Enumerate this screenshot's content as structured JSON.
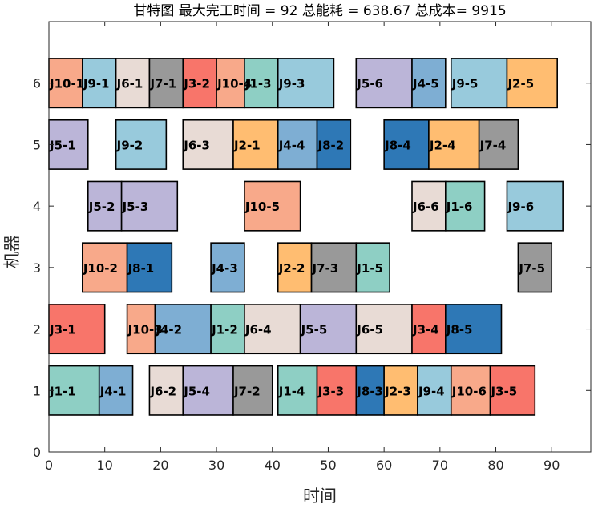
{
  "chart_data": {
    "type": "gantt",
    "title": "甘特图 最大完工时间 = 92 总能耗 = 638.67 总成本= 9915",
    "xlabel": "时间",
    "ylabel": "机器",
    "xlim": [
      0,
      97
    ],
    "ylim": [
      0,
      7
    ],
    "xticks": [
      0,
      10,
      20,
      30,
      40,
      50,
      60,
      70,
      80,
      90
    ],
    "yticks": [
      0,
      1,
      2,
      3,
      4,
      5,
      6
    ],
    "job_colors": {
      "J1": "#8ecfc4",
      "J2": "#ffbd71",
      "J3": "#f8756a",
      "J4": "#7eaed3",
      "J5": "#bbb5d8",
      "J6": "#e8dbd5",
      "J7": "#999999",
      "J8": "#2e78b6",
      "J9": "#98cadc",
      "J10": "#f8a98a"
    },
    "tasks": [
      {
        "machine": 6,
        "label": "J10-1",
        "job": "J10",
        "start": 0,
        "end": 6
      },
      {
        "machine": 6,
        "label": "J9-1",
        "job": "J9",
        "start": 6,
        "end": 12
      },
      {
        "machine": 6,
        "label": "J6-1",
        "job": "J6",
        "start": 12,
        "end": 18
      },
      {
        "machine": 6,
        "label": "J7-1",
        "job": "J7",
        "start": 18,
        "end": 24
      },
      {
        "machine": 6,
        "label": "J3-2",
        "job": "J3",
        "start": 24,
        "end": 30
      },
      {
        "machine": 6,
        "label": "J10-4",
        "job": "J10",
        "start": 30,
        "end": 35
      },
      {
        "machine": 6,
        "label": "J1-3",
        "job": "J1",
        "start": 35,
        "end": 41
      },
      {
        "machine": 6,
        "label": "J9-3",
        "job": "J9",
        "start": 41,
        "end": 51
      },
      {
        "machine": 6,
        "label": "J5-6",
        "job": "J5",
        "start": 55,
        "end": 65
      },
      {
        "machine": 6,
        "label": "J4-5",
        "job": "J4",
        "start": 65,
        "end": 71
      },
      {
        "machine": 6,
        "label": "J9-5",
        "job": "J9",
        "start": 72,
        "end": 82
      },
      {
        "machine": 6,
        "label": "J2-5",
        "job": "J2",
        "start": 82,
        "end": 91
      },
      {
        "machine": 5,
        "label": "J5-1",
        "job": "J5",
        "start": 0,
        "end": 7
      },
      {
        "machine": 5,
        "label": "J9-2",
        "job": "J9",
        "start": 12,
        "end": 21
      },
      {
        "machine": 5,
        "label": "J6-3",
        "job": "J6",
        "start": 24,
        "end": 33
      },
      {
        "machine": 5,
        "label": "J2-1",
        "job": "J2",
        "start": 33,
        "end": 41
      },
      {
        "machine": 5,
        "label": "J4-4",
        "job": "J4",
        "start": 41,
        "end": 48
      },
      {
        "machine": 5,
        "label": "J8-2",
        "job": "J8",
        "start": 48,
        "end": 54
      },
      {
        "machine": 5,
        "label": "J8-4",
        "job": "J8",
        "start": 60,
        "end": 68
      },
      {
        "machine": 5,
        "label": "J2-4",
        "job": "J2",
        "start": 68,
        "end": 77
      },
      {
        "machine": 5,
        "label": "J7-4",
        "job": "J7",
        "start": 77,
        "end": 84
      },
      {
        "machine": 4,
        "label": "J5-2",
        "job": "J5",
        "start": 7,
        "end": 13
      },
      {
        "machine": 4,
        "label": "J5-3",
        "job": "J5",
        "start": 13,
        "end": 23
      },
      {
        "machine": 4,
        "label": "J10-5",
        "job": "J10",
        "start": 35,
        "end": 45
      },
      {
        "machine": 4,
        "label": "J6-6",
        "job": "J6",
        "start": 65,
        "end": 71
      },
      {
        "machine": 4,
        "label": "J1-6",
        "job": "J1",
        "start": 71,
        "end": 78
      },
      {
        "machine": 4,
        "label": "J9-6",
        "job": "J9",
        "start": 82,
        "end": 92
      },
      {
        "machine": 3,
        "label": "J10-2",
        "job": "J10",
        "start": 6,
        "end": 14
      },
      {
        "machine": 3,
        "label": "J8-1",
        "job": "J8",
        "start": 14,
        "end": 22
      },
      {
        "machine": 3,
        "label": "J4-3",
        "job": "J4",
        "start": 29,
        "end": 35
      },
      {
        "machine": 3,
        "label": "J2-2",
        "job": "J2",
        "start": 41,
        "end": 47
      },
      {
        "machine": 3,
        "label": "J7-3",
        "job": "J7",
        "start": 47,
        "end": 55
      },
      {
        "machine": 3,
        "label": "J1-5",
        "job": "J1",
        "start": 55,
        "end": 61
      },
      {
        "machine": 3,
        "label": "J7-5",
        "job": "J7",
        "start": 84,
        "end": 90
      },
      {
        "machine": 2,
        "label": "J3-1",
        "job": "J3",
        "start": 0,
        "end": 10
      },
      {
        "machine": 2,
        "label": "J10-3",
        "job": "J10",
        "start": 14,
        "end": 19
      },
      {
        "machine": 2,
        "label": "J4-2",
        "job": "J4",
        "start": 19,
        "end": 29
      },
      {
        "machine": 2,
        "label": "J1-2",
        "job": "J1",
        "start": 29,
        "end": 35
      },
      {
        "machine": 2,
        "label": "J6-4",
        "job": "J6",
        "start": 35,
        "end": 45
      },
      {
        "machine": 2,
        "label": "J5-5",
        "job": "J5",
        "start": 45,
        "end": 55
      },
      {
        "machine": 2,
        "label": "J6-5",
        "job": "J6",
        "start": 55,
        "end": 65
      },
      {
        "machine": 2,
        "label": "J3-4",
        "job": "J3",
        "start": 65,
        "end": 71
      },
      {
        "machine": 2,
        "label": "J8-5",
        "job": "J8",
        "start": 71,
        "end": 81
      },
      {
        "machine": 1,
        "label": "J1-1",
        "job": "J1",
        "start": 0,
        "end": 9
      },
      {
        "machine": 1,
        "label": "J4-1",
        "job": "J4",
        "start": 9,
        "end": 15
      },
      {
        "machine": 1,
        "label": "J6-2",
        "job": "J6",
        "start": 18,
        "end": 24
      },
      {
        "machine": 1,
        "label": "J5-4",
        "job": "J5",
        "start": 24,
        "end": 33
      },
      {
        "machine": 1,
        "label": "J7-2",
        "job": "J7",
        "start": 33,
        "end": 40
      },
      {
        "machine": 1,
        "label": "J1-4",
        "job": "J1",
        "start": 41,
        "end": 48
      },
      {
        "machine": 1,
        "label": "J3-3",
        "job": "J3",
        "start": 48,
        "end": 55
      },
      {
        "machine": 1,
        "label": "J8-3",
        "job": "J8",
        "start": 55,
        "end": 60
      },
      {
        "machine": 1,
        "label": "J2-3",
        "job": "J2",
        "start": 60,
        "end": 66
      },
      {
        "machine": 1,
        "label": "J9-4",
        "job": "J9",
        "start": 66,
        "end": 72
      },
      {
        "machine": 1,
        "label": "J10-6",
        "job": "J10",
        "start": 72,
        "end": 79
      },
      {
        "machine": 1,
        "label": "J3-5",
        "job": "J3",
        "start": 79,
        "end": 87
      }
    ]
  }
}
